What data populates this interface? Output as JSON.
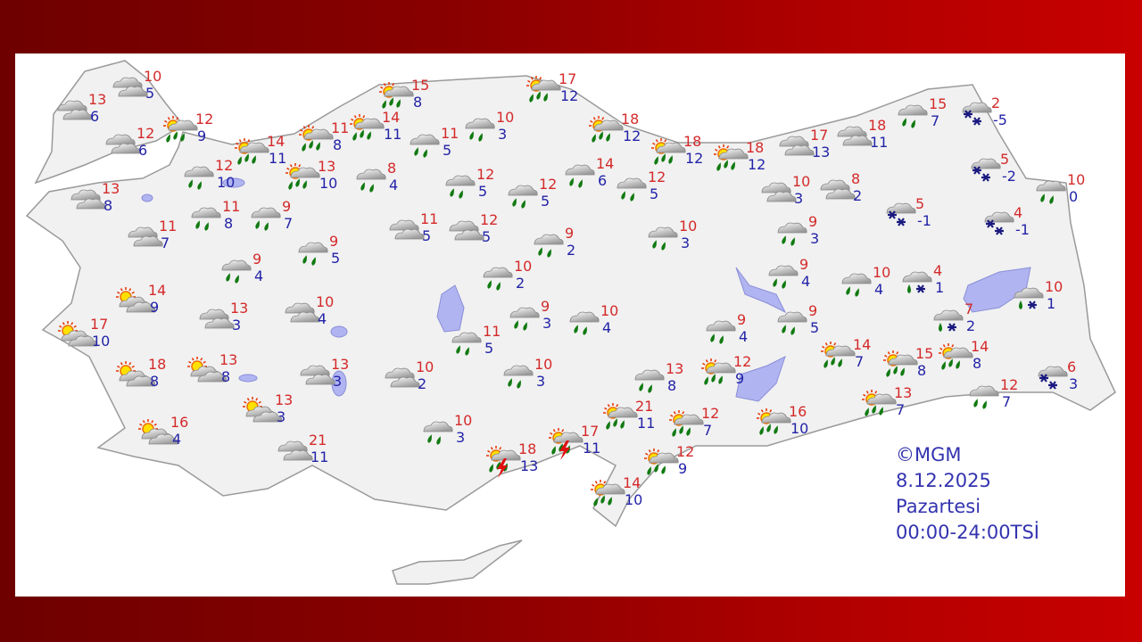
{
  "map": {
    "copyright": "©MGM",
    "date": "8.12.2025",
    "day": "Pazartesi",
    "period": "00:00-24:00TSİ"
  },
  "colors": {
    "high_temp": "#d42a2a",
    "low_temp": "#2323a8",
    "rain_drop": "#117a11",
    "snow": "#1a1a80",
    "lightning": "#e01010",
    "lake": "#b0b4f0",
    "land": "#f1f1f1"
  },
  "stations": [
    {
      "icon": "cloudy",
      "high": "10",
      "low": "5"
    },
    {
      "icon": "cloudy",
      "high": "13",
      "low": "6"
    },
    {
      "icon": "sun-rain",
      "high": "12",
      "low": "9"
    },
    {
      "icon": "cloudy",
      "high": "12",
      "low": "6"
    },
    {
      "icon": "rain",
      "high": "12",
      "low": "10"
    },
    {
      "icon": "sun-rain",
      "high": "14",
      "low": "11"
    },
    {
      "icon": "sun-rain",
      "high": "11",
      "low": "8"
    },
    {
      "icon": "sun-rain",
      "high": "14",
      "low": "11"
    },
    {
      "icon": "sun-rain",
      "high": "15",
      "low": "8"
    },
    {
      "icon": "sun-rain",
      "high": "13",
      "low": "10"
    },
    {
      "icon": "rain",
      "high": "8",
      "low": "4"
    },
    {
      "icon": "rain",
      "high": "11",
      "low": "5"
    },
    {
      "icon": "rain",
      "high": "10",
      "low": "3"
    },
    {
      "icon": "sun-rain",
      "high": "17",
      "low": "12"
    },
    {
      "icon": "sun-rain",
      "high": "18",
      "low": "12"
    },
    {
      "icon": "sun-rain",
      "high": "18",
      "low": "12"
    },
    {
      "icon": "sun-rain",
      "high": "18",
      "low": "12"
    },
    {
      "icon": "cloudy",
      "high": "17",
      "low": "13"
    },
    {
      "icon": "cloudy",
      "high": "18",
      "low": "11"
    },
    {
      "icon": "rain",
      "high": "15",
      "low": "7"
    },
    {
      "icon": "snow",
      "high": "2",
      "low": "-5"
    },
    {
      "icon": "snow",
      "high": "5",
      "low": "-2"
    },
    {
      "icon": "rain",
      "high": "10",
      "low": "0"
    },
    {
      "icon": "snow",
      "high": "5",
      "low": "-1"
    },
    {
      "icon": "snow",
      "high": "4",
      "low": "-1"
    },
    {
      "icon": "cloudy",
      "high": "10",
      "low": "3"
    },
    {
      "icon": "cloudy",
      "high": "8",
      "low": "2"
    },
    {
      "icon": "rain",
      "high": "9",
      "low": "3"
    },
    {
      "icon": "rain",
      "high": "9",
      "low": "4"
    },
    {
      "icon": "rain",
      "high": "10",
      "low": "4"
    },
    {
      "icon": "rain-snow",
      "high": "4",
      "low": "1"
    },
    {
      "icon": "rain-snow",
      "high": "10",
      "low": "1"
    },
    {
      "icon": "rain-snow",
      "high": "7",
      "low": "2"
    },
    {
      "icon": "rain",
      "high": "9",
      "low": "5"
    },
    {
      "icon": "rain",
      "high": "9",
      "low": "4"
    },
    {
      "icon": "sun-rain",
      "high": "14",
      "low": "7"
    },
    {
      "icon": "sun-rain",
      "high": "15",
      "low": "8"
    },
    {
      "icon": "sun-rain",
      "high": "14",
      "low": "8"
    },
    {
      "icon": "snow",
      "high": "6",
      "low": "3"
    },
    {
      "icon": "rain",
      "high": "12",
      "low": "7"
    },
    {
      "icon": "sun-rain",
      "high": "13",
      "low": "7"
    },
    {
      "icon": "sun-rain",
      "high": "16",
      "low": "10"
    },
    {
      "icon": "sun-rain",
      "high": "12",
      "low": "9"
    },
    {
      "icon": "rain",
      "high": "13",
      "low": "8"
    },
    {
      "icon": "sun-rain",
      "high": "21",
      "low": "11"
    },
    {
      "icon": "sun-rain",
      "high": "12",
      "low": "7"
    },
    {
      "icon": "sun-rain",
      "high": "12",
      "low": "9"
    },
    {
      "icon": "sun-rain",
      "high": "14",
      "low": "10"
    },
    {
      "icon": "thunder",
      "high": "17",
      "low": "11"
    },
    {
      "icon": "thunder",
      "high": "18",
      "low": "13"
    },
    {
      "icon": "rain",
      "high": "10",
      "low": "3"
    },
    {
      "icon": "rain",
      "high": "10",
      "low": "3"
    },
    {
      "icon": "cloudy",
      "high": "10",
      "low": "2"
    },
    {
      "icon": "rain",
      "high": "11",
      "low": "5"
    },
    {
      "icon": "rain",
      "high": "9",
      "low": "3"
    },
    {
      "icon": "rain",
      "high": "10",
      "low": "4"
    },
    {
      "icon": "rain",
      "high": "10",
      "low": "2"
    },
    {
      "icon": "rain",
      "high": "9",
      "low": "2"
    },
    {
      "icon": "rain",
      "high": "10",
      "low": "3"
    },
    {
      "icon": "cloudy",
      "high": "12",
      "low": "5"
    },
    {
      "icon": "cloudy",
      "high": "11",
      "low": "5"
    },
    {
      "icon": "rain",
      "high": "12",
      "low": "5"
    },
    {
      "icon": "rain",
      "high": "12",
      "low": "5"
    },
    {
      "icon": "rain",
      "high": "14",
      "low": "6"
    },
    {
      "icon": "rain",
      "high": "12",
      "low": "5"
    },
    {
      "icon": "rain",
      "high": "9",
      "low": "7"
    },
    {
      "icon": "rain",
      "high": "11",
      "low": "8"
    },
    {
      "icon": "cloudy",
      "high": "11",
      "low": "7"
    },
    {
      "icon": "cloudy",
      "high": "13",
      "low": "8"
    },
    {
      "icon": "rain",
      "high": "9",
      "low": "5"
    },
    {
      "icon": "rain",
      "high": "9",
      "low": "4"
    },
    {
      "icon": "partly-cloudy",
      "high": "14",
      "low": "9"
    },
    {
      "icon": "cloudy",
      "high": "13",
      "low": "3"
    },
    {
      "icon": "cloudy",
      "high": "10",
      "low": "4"
    },
    {
      "icon": "partly-cloudy",
      "high": "17",
      "low": "10"
    },
    {
      "icon": "partly-cloudy",
      "high": "18",
      "low": "8"
    },
    {
      "icon": "partly-cloudy",
      "high": "13",
      "low": "8"
    },
    {
      "icon": "cloudy",
      "high": "13",
      "low": "3"
    },
    {
      "icon": "partly-cloudy",
      "high": "13",
      "low": "3"
    },
    {
      "icon": "partly-cloudy",
      "high": "16",
      "low": "4"
    },
    {
      "icon": "cloudy",
      "high": "21",
      "low": "11"
    }
  ]
}
